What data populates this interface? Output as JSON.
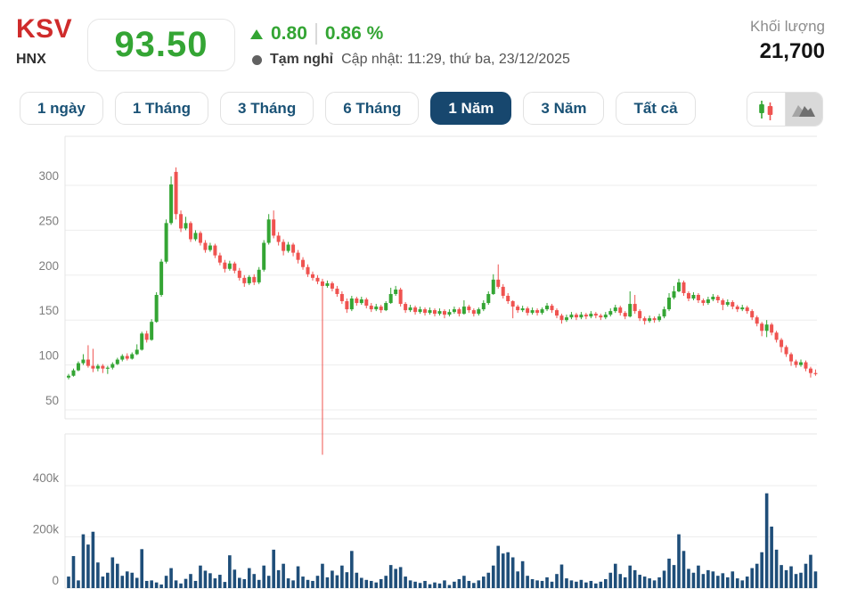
{
  "header": {
    "symbol": "KSV",
    "exchange": "HNX",
    "price": "93.50",
    "change_direction": "up",
    "change_value": "0.80",
    "change_percent": "0.86 %",
    "status_label": "Tạm nghỉ",
    "updated_label": "Cập nhật: 11:29, thứ ba, 23/12/2025",
    "volume_label": "Khối lượng",
    "volume_value": "21,700"
  },
  "tabs": [
    {
      "label": "1 ngày",
      "active": false
    },
    {
      "label": "1 Tháng",
      "active": false
    },
    {
      "label": "3 Tháng",
      "active": false
    },
    {
      "label": "6 Tháng",
      "active": false
    },
    {
      "label": "1 Năm",
      "active": true
    },
    {
      "label": "3 Năm",
      "active": false
    },
    {
      "label": "Tất cả",
      "active": false
    }
  ],
  "chart_toggle": {
    "options": [
      {
        "icon": "candlestick-icon",
        "background": "white"
      },
      {
        "icon": "mountain-area-icon",
        "background": "gray"
      }
    ]
  },
  "colors": {
    "up_green": "#34a534",
    "down_red": "#ef5350",
    "volume_bar": "#1f4e79",
    "tab_navy": "#1a5276",
    "active_tab_bg": "#17476e",
    "symbol_red": "#cf2b2b"
  },
  "chart_data": {
    "type": "candlestick",
    "title": "KSV daily candlestick chart, 1-year range, with volume pane",
    "legend": "none",
    "grid": "horizontal only",
    "price_axis": {
      "ticks": [
        300,
        250,
        200,
        150,
        100,
        50
      ]
    },
    "volume_axis": {
      "ticks": [
        "400k",
        "200k",
        "0"
      ]
    },
    "anomaly": {
      "index": 52,
      "note": "single red lower wick plunges to 0, overflowing below the price pane"
    },
    "candles_ohlc": [
      [
        86,
        90,
        84,
        88
      ],
      [
        88,
        96,
        87,
        94
      ],
      [
        94,
        104,
        93,
        102
      ],
      [
        102,
        112,
        100,
        106
      ],
      [
        106,
        122,
        97,
        99
      ],
      [
        99,
        118,
        92,
        96
      ],
      [
        96,
        101,
        93,
        99
      ],
      [
        99,
        101,
        91,
        96
      ],
      [
        96,
        99,
        90,
        97
      ],
      [
        97,
        103,
        95,
        101
      ],
      [
        101,
        108,
        100,
        106
      ],
      [
        106,
        112,
        104,
        110
      ],
      [
        110,
        113,
        105,
        107
      ],
      [
        107,
        114,
        106,
        112
      ],
      [
        112,
        123,
        111,
        117
      ],
      [
        117,
        137,
        116,
        135
      ],
      [
        135,
        138,
        125,
        128
      ],
      [
        128,
        151,
        127,
        148
      ],
      [
        148,
        181,
        147,
        178
      ],
      [
        178,
        218,
        176,
        215
      ],
      [
        215,
        262,
        213,
        258
      ],
      [
        258,
        310,
        256,
        301
      ],
      [
        315,
        320,
        262,
        268
      ],
      [
        268,
        272,
        248,
        252
      ],
      [
        252,
        265,
        250,
        258
      ],
      [
        258,
        260,
        237,
        240
      ],
      [
        240,
        250,
        238,
        247
      ],
      [
        247,
        249,
        233,
        236
      ],
      [
        236,
        239,
        225,
        228
      ],
      [
        228,
        236,
        226,
        233
      ],
      [
        233,
        235,
        219,
        222
      ],
      [
        222,
        225,
        211,
        214
      ],
      [
        214,
        217,
        203,
        207
      ],
      [
        207,
        216,
        205,
        213
      ],
      [
        213,
        215,
        202,
        205
      ],
      [
        205,
        208,
        194,
        197
      ],
      [
        197,
        200,
        187,
        191
      ],
      [
        191,
        200,
        189,
        198
      ],
      [
        198,
        201,
        189,
        192
      ],
      [
        192,
        209,
        190,
        206
      ],
      [
        206,
        239,
        204,
        236
      ],
      [
        236,
        268,
        234,
        262
      ],
      [
        262,
        272,
        241,
        244
      ],
      [
        244,
        248,
        233,
        237
      ],
      [
        237,
        240,
        222,
        227
      ],
      [
        227,
        237,
        225,
        234
      ],
      [
        234,
        236,
        221,
        225
      ],
      [
        225,
        228,
        213,
        217
      ],
      [
        217,
        220,
        206,
        209
      ],
      [
        209,
        212,
        198,
        201
      ],
      [
        201,
        204,
        194,
        197
      ],
      [
        197,
        200,
        190,
        193
      ],
      [
        193,
        196,
        0,
        188
      ],
      [
        188,
        194,
        186,
        191
      ],
      [
        191,
        193,
        182,
        185
      ],
      [
        185,
        188,
        176,
        179
      ],
      [
        179,
        182,
        168,
        171
      ],
      [
        171,
        174,
        158,
        162
      ],
      [
        162,
        177,
        160,
        174
      ],
      [
        174,
        176,
        166,
        169
      ],
      [
        169,
        176,
        167,
        173
      ],
      [
        173,
        175,
        163,
        166
      ],
      [
        166,
        169,
        159,
        162
      ],
      [
        162,
        168,
        160,
        165
      ],
      [
        165,
        167,
        158,
        161
      ],
      [
        161,
        171,
        160,
        169
      ],
      [
        169,
        186,
        168,
        179
      ],
      [
        179,
        188,
        177,
        184
      ],
      [
        184,
        186,
        165,
        168
      ],
      [
        168,
        170,
        158,
        161
      ],
      [
        161,
        167,
        159,
        164
      ],
      [
        164,
        166,
        156,
        159
      ],
      [
        159,
        165,
        157,
        162
      ],
      [
        162,
        164,
        155,
        158
      ],
      [
        158,
        164,
        156,
        161
      ],
      [
        161,
        163,
        154,
        157
      ],
      [
        157,
        163,
        155,
        160
      ],
      [
        160,
        162,
        152,
        156
      ],
      [
        156,
        162,
        154,
        159
      ],
      [
        159,
        165,
        157,
        162
      ],
      [
        162,
        164,
        154,
        157
      ],
      [
        157,
        172,
        156,
        165
      ],
      [
        165,
        167,
        158,
        161
      ],
      [
        161,
        163,
        154,
        157
      ],
      [
        157,
        164,
        155,
        162
      ],
      [
        162,
        172,
        160,
        169
      ],
      [
        169,
        182,
        167,
        179
      ],
      [
        179,
        201,
        178,
        195
      ],
      [
        195,
        212,
        185,
        187
      ],
      [
        187,
        190,
        174,
        177
      ],
      [
        177,
        180,
        168,
        171
      ],
      [
        171,
        172,
        152,
        165
      ],
      [
        165,
        167,
        158,
        161
      ],
      [
        161,
        166,
        159,
        163
      ],
      [
        163,
        165,
        155,
        158
      ],
      [
        158,
        164,
        156,
        161
      ],
      [
        161,
        163,
        155,
        158
      ],
      [
        158,
        164,
        156,
        162
      ],
      [
        162,
        169,
        160,
        166
      ],
      [
        166,
        168,
        158,
        161
      ],
      [
        161,
        163,
        152,
        155
      ],
      [
        155,
        157,
        146,
        150
      ],
      [
        150,
        156,
        148,
        153
      ],
      [
        153,
        159,
        151,
        156
      ],
      [
        156,
        158,
        150,
        153
      ],
      [
        153,
        159,
        151,
        156
      ],
      [
        156,
        158,
        151,
        154
      ],
      [
        154,
        160,
        152,
        157
      ],
      [
        157,
        159,
        152,
        155
      ],
      [
        155,
        157,
        150,
        153
      ],
      [
        153,
        159,
        151,
        156
      ],
      [
        156,
        163,
        154,
        160
      ],
      [
        160,
        167,
        158,
        164
      ],
      [
        164,
        166,
        155,
        158
      ],
      [
        158,
        160,
        151,
        154
      ],
      [
        154,
        182,
        153,
        168
      ],
      [
        168,
        178,
        157,
        160
      ],
      [
        160,
        162,
        149,
        152
      ],
      [
        152,
        154,
        145,
        149
      ],
      [
        149,
        155,
        147,
        152
      ],
      [
        152,
        154,
        147,
        150
      ],
      [
        150,
        157,
        148,
        154
      ],
      [
        154,
        165,
        152,
        162
      ],
      [
        162,
        180,
        160,
        175
      ],
      [
        175,
        188,
        173,
        182
      ],
      [
        182,
        196,
        181,
        192
      ],
      [
        192,
        194,
        177,
        180
      ],
      [
        180,
        182,
        171,
        174
      ],
      [
        174,
        181,
        172,
        178
      ],
      [
        178,
        180,
        169,
        172
      ],
      [
        172,
        174,
        166,
        169
      ],
      [
        169,
        176,
        167,
        173
      ],
      [
        173,
        179,
        171,
        176
      ],
      [
        176,
        178,
        169,
        172
      ],
      [
        172,
        174,
        161,
        167
      ],
      [
        167,
        173,
        165,
        170
      ],
      [
        170,
        172,
        162,
        165
      ],
      [
        165,
        167,
        159,
        162
      ],
      [
        162,
        167,
        160,
        164
      ],
      [
        164,
        166,
        157,
        160
      ],
      [
        160,
        162,
        150,
        153
      ],
      [
        153,
        155,
        143,
        146
      ],
      [
        146,
        148,
        132,
        138
      ],
      [
        138,
        150,
        131,
        145
      ],
      [
        145,
        147,
        133,
        136
      ],
      [
        136,
        138,
        125,
        128
      ],
      [
        128,
        130,
        114,
        120
      ],
      [
        120,
        122,
        109,
        112
      ],
      [
        112,
        114,
        99,
        104
      ],
      [
        104,
        106,
        97,
        100
      ],
      [
        100,
        106,
        98,
        103
      ],
      [
        103,
        105,
        93,
        96
      ],
      [
        96,
        98,
        86,
        91
      ],
      [
        91,
        95,
        88,
        90
      ]
    ],
    "volumes_k": [
      45,
      125,
      30,
      210,
      170,
      220,
      100,
      45,
      60,
      120,
      95,
      48,
      65,
      60,
      40,
      152,
      28,
      30,
      22,
      14,
      48,
      78,
      30,
      18,
      36,
      55,
      28,
      88,
      68,
      58,
      38,
      52,
      24,
      128,
      72,
      40,
      35,
      78,
      55,
      32,
      88,
      48,
      150,
      70,
      95,
      38,
      30,
      85,
      45,
      32,
      28,
      48,
      95,
      42,
      68,
      50,
      88,
      62,
      145,
      60,
      40,
      32,
      28,
      22,
      35,
      48,
      90,
      75,
      82,
      45,
      30,
      25,
      20,
      28,
      15,
      22,
      18,
      30,
      12,
      25,
      35,
      48,
      28,
      20,
      30,
      45,
      60,
      88,
      165,
      135,
      140,
      120,
      65,
      105,
      48,
      35,
      30,
      28,
      42,
      25,
      55,
      92,
      38,
      30,
      25,
      32,
      22,
      28,
      18,
      25,
      35,
      60,
      95,
      55,
      42,
      88,
      70,
      52,
      45,
      38,
      30,
      42,
      68,
      115,
      90,
      210,
      145,
      75,
      60,
      88,
      55,
      70,
      65,
      48,
      58,
      42,
      65,
      38,
      30,
      45,
      78,
      95,
      140,
      370,
      240,
      150,
      90,
      70,
      85,
      55,
      60,
      95,
      130,
      65
    ]
  }
}
